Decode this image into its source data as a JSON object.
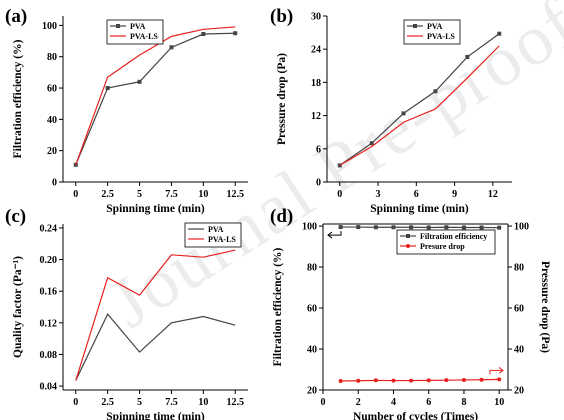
{
  "watermark": "Journal Pre-proof",
  "chart_data": [
    {
      "panel": "(a)",
      "type": "line",
      "xlabel": "Spinning time (min)",
      "ylabel": "Filtration efficiency (%)",
      "xlim": [
        -1,
        13.5
      ],
      "ylim": [
        0,
        106
      ],
      "x_ticks": [
        0,
        2.5,
        5,
        7.5,
        10,
        12.5
      ],
      "x_tick_labels": [
        "0",
        "2.5",
        "5",
        "7.5",
        "10",
        "12.5"
      ],
      "y_ticks": [
        0,
        20,
        40,
        60,
        80,
        100
      ],
      "y_tick_labels": [
        "0",
        "20",
        "40",
        "60",
        "80",
        "100"
      ],
      "legend": "top-center",
      "x": [
        0,
        2.5,
        5,
        7.5,
        10,
        12.5
      ],
      "series": [
        {
          "name": "PVA",
          "color": "#444444",
          "marker": "square",
          "values": [
            11,
            60,
            64,
            86,
            94.5,
            95
          ]
        },
        {
          "name": "PVA-LS",
          "color": "#e8201f",
          "marker": "none",
          "values": [
            11,
            67,
            81,
            93,
            97.5,
            99
          ]
        }
      ]
    },
    {
      "panel": "(b)",
      "type": "line",
      "xlabel": "Spinning time (min)",
      "ylabel": "Pressure drop (Pa)",
      "xlim": [
        -1,
        13.5
      ],
      "ylim": [
        0,
        30
      ],
      "x_ticks": [
        0,
        3,
        6,
        9,
        12
      ],
      "x_tick_labels": [
        "0",
        "3",
        "6",
        "9",
        "12"
      ],
      "y_ticks": [
        0,
        6,
        12,
        18,
        24,
        30
      ],
      "y_tick_labels": [
        "0",
        "6",
        "12",
        "18",
        "24",
        "30"
      ],
      "legend": "top-center",
      "x": [
        0,
        2.5,
        5,
        7.5,
        10,
        12.5
      ],
      "series": [
        {
          "name": "PVA",
          "color": "#444444",
          "marker": "square",
          "values": [
            3,
            7,
            12.4,
            16.4,
            22.6,
            26.8
          ]
        },
        {
          "name": "PVA-LS",
          "color": "#e8201f",
          "marker": "none",
          "values": [
            3,
            6.4,
            10.8,
            13.2,
            18.8,
            24.6
          ]
        }
      ]
    },
    {
      "panel": "(c)",
      "type": "line",
      "xlabel": "Spinning time (min)",
      "ylabel": "Quality factor (Pa⁻¹)",
      "xlim": [
        -1,
        13.5
      ],
      "ylim": [
        0.035,
        0.245
      ],
      "x_ticks": [
        0,
        2.5,
        5,
        7.5,
        10,
        12.5
      ],
      "x_tick_labels": [
        "0",
        "2.5",
        "5",
        "7.5",
        "10",
        "12.5"
      ],
      "y_ticks": [
        0.04,
        0.08,
        0.12,
        0.16,
        0.2,
        0.24
      ],
      "y_tick_labels": [
        "0.04",
        "0.08",
        "0.12",
        "0.16",
        "0.20",
        "0.24"
      ],
      "legend": "top-right",
      "x": [
        0,
        2.5,
        5,
        7.5,
        10,
        12.5
      ],
      "series": [
        {
          "name": "PVA",
          "color": "#444444",
          "marker": "none",
          "values": [
            0.047,
            0.131,
            0.083,
            0.12,
            0.128,
            0.117
          ]
        },
        {
          "name": "PVA-LS",
          "color": "#e8201f",
          "marker": "none",
          "values": [
            0.047,
            0.177,
            0.155,
            0.206,
            0.203,
            0.212
          ]
        }
      ]
    },
    {
      "panel": "(d)",
      "type": "line",
      "xlabel": "Number of cycles (Times)",
      "ylabel": "Filtration efficiency (%)",
      "ylabel_right": "Pressure drop (Pa)",
      "xlim": [
        0,
        10.5
      ],
      "ylim": [
        20,
        101
      ],
      "ylim_right": [
        20,
        101
      ],
      "x_ticks": [
        0,
        2,
        4,
        6,
        8,
        10
      ],
      "x_tick_labels": [
        "0",
        "2",
        "4",
        "6",
        "8",
        "10"
      ],
      "y_ticks": [
        20,
        40,
        60,
        80,
        100
      ],
      "y_tick_labels": [
        "20",
        "40",
        "60",
        "80",
        "100"
      ],
      "y_right_ticks": [
        20,
        40,
        60,
        80,
        100
      ],
      "y_right_tick_labels": [
        "20",
        "40",
        "60",
        "80",
        "100"
      ],
      "legend": "top-right",
      "x": [
        1,
        2,
        3,
        4,
        5,
        6,
        7,
        8,
        9,
        10
      ],
      "series": [
        {
          "name": "Filtration efficiency",
          "color": "#444444",
          "marker": "square",
          "axis": "left",
          "values": [
            99.5,
            99.5,
            99.4,
            99.4,
            99.4,
            99.3,
            99.4,
            99.3,
            99.3,
            99.2
          ]
        },
        {
          "name": "Presure drop",
          "color": "#e8201f",
          "marker": "circle",
          "axis": "right",
          "values": [
            24.4,
            24.5,
            24.7,
            24.6,
            24.6,
            24.7,
            24.8,
            24.9,
            25.0,
            25.2
          ]
        }
      ]
    }
  ]
}
